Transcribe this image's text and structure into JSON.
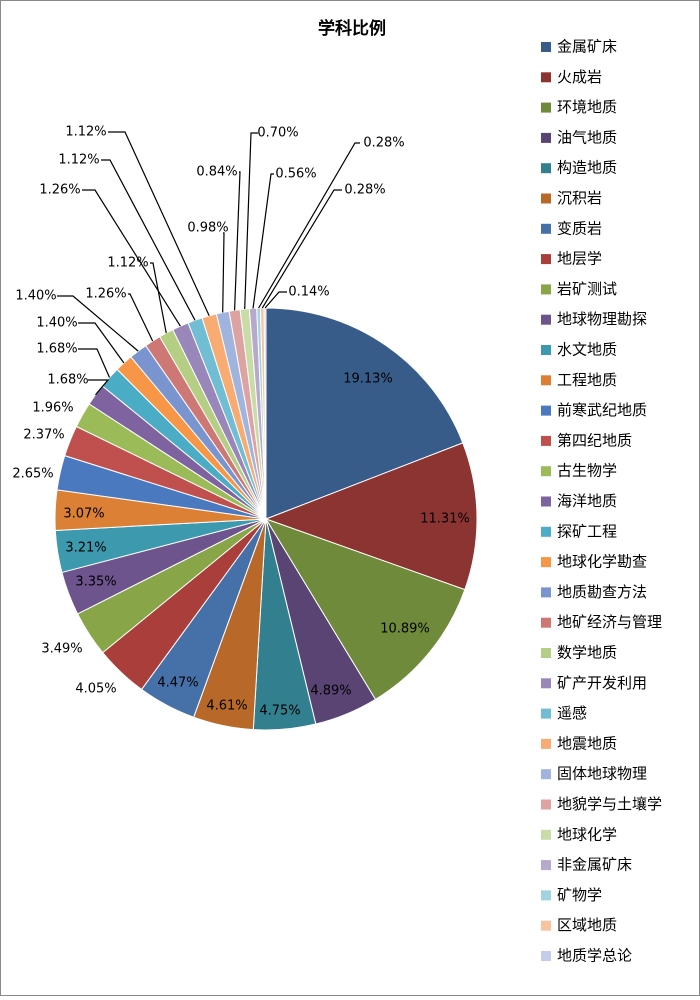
{
  "chart_data": {
    "type": "pie",
    "title": "学科比例",
    "legend_position": "right",
    "series": [
      {
        "label": "金属矿床",
        "value": 19.13,
        "pct_label": "19.13%",
        "color": "#375C8A"
      },
      {
        "label": "火成岩",
        "value": 11.31,
        "pct_label": "11.31%",
        "color": "#8C3431"
      },
      {
        "label": "环境地质",
        "value": 10.89,
        "pct_label": "10.89%",
        "color": "#6F8A3A"
      },
      {
        "label": "油气地质",
        "value": 4.89,
        "pct_label": "4.89%",
        "color": "#5A4474"
      },
      {
        "label": "构造地质",
        "value": 4.75,
        "pct_label": "4.75%",
        "color": "#32808F"
      },
      {
        "label": "沉积岩",
        "value": 4.61,
        "pct_label": "4.61%",
        "color": "#B8692A"
      },
      {
        "label": "变质岩",
        "value": 4.47,
        "pct_label": "4.47%",
        "color": "#4670A8"
      },
      {
        "label": "地层学",
        "value": 4.05,
        "pct_label": "4.05%",
        "color": "#AA3E3B"
      },
      {
        "label": "岩矿测试",
        "value": 3.49,
        "pct_label": "3.49%",
        "color": "#88A547"
      },
      {
        "label": "地球物理勘探",
        "value": 3.35,
        "pct_label": "3.35%",
        "color": "#6E548D"
      },
      {
        "label": "水文地质",
        "value": 3.21,
        "pct_label": "3.21%",
        "color": "#3D9AAE"
      },
      {
        "label": "工程地质",
        "value": 3.07,
        "pct_label": "3.07%",
        "color": "#DB8035"
      },
      {
        "label": "前寒武纪地质",
        "value": 2.65,
        "pct_label": "2.65%",
        "color": "#4A79C0"
      },
      {
        "label": "第四纪地质",
        "value": 2.37,
        "pct_label": "2.37%",
        "color": "#C0504D"
      },
      {
        "label": "古生物学",
        "value": 1.96,
        "pct_label": "1.96%",
        "color": "#9BBB59"
      },
      {
        "label": "海洋地质",
        "value": 1.68,
        "pct_label": "1.68%",
        "color": "#7F63A1"
      },
      {
        "label": "探矿工程",
        "value": 1.68,
        "pct_label": "1.68%",
        "color": "#4BACC6"
      },
      {
        "label": "地球化学勘查",
        "value": 1.4,
        "pct_label": "1.40%",
        "color": "#F79646"
      },
      {
        "label": "地质勘查方法",
        "value": 1.4,
        "pct_label": "1.40%",
        "color": "#7994CF"
      },
      {
        "label": "地矿经济与管理",
        "value": 1.26,
        "pct_label": "1.26%",
        "color": "#CE7876"
      },
      {
        "label": "数学地质",
        "value": 1.12,
        "pct_label": "1.12%",
        "color": "#B4CE84"
      },
      {
        "label": "矿产开发利用",
        "value": 1.26,
        "pct_label": "1.26%",
        "color": "#9A87B9"
      },
      {
        "label": "遥感",
        "value": 1.12,
        "pct_label": "1.12%",
        "color": "#71BDD4"
      },
      {
        "label": "地震地质",
        "value": 1.12,
        "pct_label": "1.12%",
        "color": "#F8AB72"
      },
      {
        "label": "固体地球物理",
        "value": 0.98,
        "pct_label": "0.98%",
        "color": "#A1B4DE"
      },
      {
        "label": "地貌学与土壤学",
        "value": 0.84,
        "pct_label": "0.84%",
        "color": "#DDA3A2"
      },
      {
        "label": "地球化学",
        "value": 0.7,
        "pct_label": "0.70%",
        "color": "#C9DBA6"
      },
      {
        "label": "非金属矿床",
        "value": 0.56,
        "pct_label": "0.56%",
        "color": "#B7A9CB"
      },
      {
        "label": "矿物学",
        "value": 0.28,
        "pct_label": "0.28%",
        "color": "#A2D3E1"
      },
      {
        "label": "区域地质",
        "value": 0.28,
        "pct_label": "0.28%",
        "color": "#FAC3A0"
      },
      {
        "label": "地质学总论",
        "value": 0.14,
        "pct_label": "0.14%",
        "color": "#C3CCE8"
      }
    ]
  }
}
